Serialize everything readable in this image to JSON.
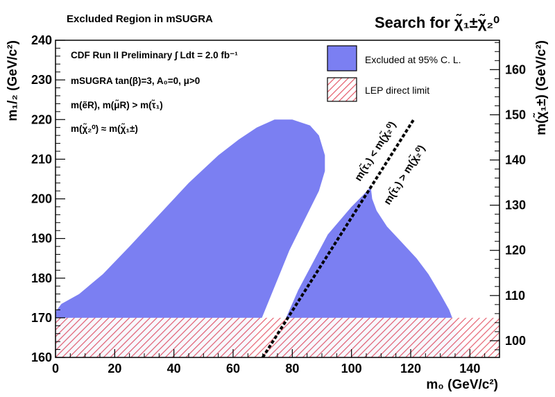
{
  "header": {
    "left_title": "Excluded Region in mSUGRA",
    "right_title": "Search for χ̃₁±χ̃₂⁰"
  },
  "annotations": {
    "line1": "CDF Run II Preliminary ∫ Ldt = 2.0 fb⁻¹",
    "line2": "mSUGRA tan(β)=3, A₀=0, μ>0",
    "line3": "m(ẽR), m(μ̃R) > m(τ̃₁)",
    "line4": "m(χ̃₂⁰) ≈ m(χ̃₁±)",
    "diag_upper": "m(τ̃₁) < m(χ̃₂⁰)",
    "diag_lower": "m(τ̃₁) > m(χ̃₂⁰)"
  },
  "chart_data": {
    "type": "area",
    "title": "Excluded Region in mSUGRA",
    "xlabel": "m₀ (GeV/c²)",
    "ylabel": "m₁/₂ (GeV/c²)",
    "y2label": "m(χ̃₁±) (GeV/c²)",
    "xlim": [
      0,
      150
    ],
    "ylim": [
      160,
      240
    ],
    "y2lim": [
      96.3,
      166.5
    ],
    "xticks": [
      0,
      20,
      40,
      60,
      80,
      100,
      120,
      140
    ],
    "yticks": [
      160,
      170,
      180,
      190,
      200,
      210,
      220,
      230,
      240
    ],
    "y2ticks": [
      100,
      110,
      120,
      130,
      140,
      150,
      160
    ],
    "grid": false,
    "legend_position": "top-right",
    "legend": [
      {
        "label": "Excluded at 95% C. L.",
        "color": "#7b7ff2",
        "style": "fill"
      },
      {
        "label": "LEP direct limit",
        "color": "#e55a6a",
        "style": "hatch"
      }
    ],
    "regions": [
      {
        "name": "Excluded at 95% C. L.",
        "color": "#7b7ff2",
        "points": [
          [
            0,
            160
          ],
          [
            0,
            171.5
          ],
          [
            2,
            173.5
          ],
          [
            8,
            176
          ],
          [
            16,
            181
          ],
          [
            25,
            188
          ],
          [
            35,
            196
          ],
          [
            45,
            204
          ],
          [
            55,
            211
          ],
          [
            62,
            215
          ],
          [
            68,
            218
          ],
          [
            74,
            220
          ],
          [
            80,
            220
          ],
          [
            86,
            218.5
          ],
          [
            89,
            216
          ],
          [
            91,
            211
          ],
          [
            91,
            207
          ],
          [
            89,
            202
          ],
          [
            86,
            197.5
          ],
          [
            83,
            193
          ],
          [
            79,
            187
          ],
          [
            76,
            181.5
          ],
          [
            73,
            176
          ],
          [
            70,
            170.5
          ],
          [
            67,
            165
          ],
          [
            64,
            160
          ]
        ]
      },
      {
        "name": "Excluded at 95% C. L.",
        "color": "#7b7ff2",
        "points": [
          [
            72,
            160
          ],
          [
            82,
            177
          ],
          [
            92,
            191
          ],
          [
            100,
            198
          ],
          [
            104,
            201
          ],
          [
            106.5,
            203
          ],
          [
            107,
            200
          ],
          [
            108.5,
            197
          ],
          [
            112,
            193
          ],
          [
            117,
            189
          ],
          [
            122,
            185
          ],
          [
            126,
            181
          ],
          [
            130,
            176
          ],
          [
            133,
            172
          ],
          [
            135,
            168
          ],
          [
            137,
            164
          ],
          [
            139,
            160
          ]
        ]
      },
      {
        "name": "LEP direct limit",
        "color": "#e55a6a",
        "style": "hatch",
        "points": [
          [
            0,
            160
          ],
          [
            150,
            160
          ],
          [
            150,
            170
          ],
          [
            0,
            170
          ]
        ]
      }
    ],
    "lines": [
      {
        "name": "m(τ̃₁) = m(χ̃₂⁰)",
        "style": "dashed",
        "color": "#000000",
        "points": [
          [
            70,
            160
          ],
          [
            121,
            220
          ]
        ]
      }
    ]
  }
}
